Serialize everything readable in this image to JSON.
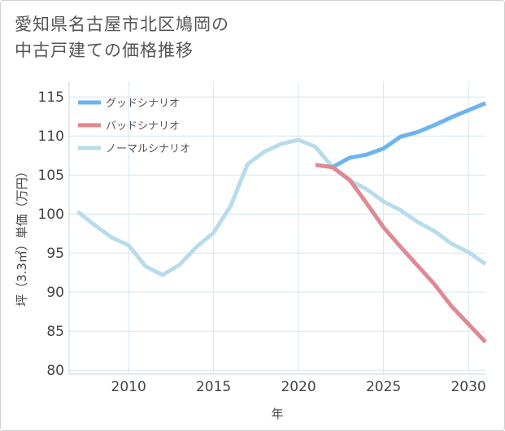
{
  "title": {
    "line1": "愛知県名古屋市北区鳩岡の",
    "line2": "中古戸建ての価格推移"
  },
  "chart_data": {
    "type": "line",
    "title": "愛知県名古屋市北区鳩岡の中古戸建ての価格推移",
    "xlabel": "年",
    "ylabel": "坪（3.3㎡）単価（万円）",
    "xlim": [
      2006.5,
      2031
    ],
    "ylim": [
      79.5,
      117
    ],
    "xticks": [
      2010,
      2015,
      2020,
      2025,
      2030
    ],
    "yticks": [
      80,
      85,
      90,
      95,
      100,
      105,
      110,
      115
    ],
    "grid": true,
    "legend_position": "top-left",
    "series": [
      {
        "name": "グッドシナリオ",
        "color": "#6cb4ee",
        "x": [
          2021,
          2022,
          2023,
          2024,
          2025,
          2026,
          2027,
          2028,
          2029,
          2030,
          2031
        ],
        "values": [
          106.3,
          106.0,
          107.2,
          107.6,
          108.4,
          109.9,
          110.5,
          111.4,
          112.4,
          113.3,
          114.2
        ]
      },
      {
        "name": "バッドシナリオ",
        "color": "#de8a92",
        "x": [
          2021,
          2022,
          2023,
          2024,
          2025,
          2026,
          2027,
          2028,
          2029,
          2030,
          2031
        ],
        "values": [
          106.3,
          106.0,
          104.4,
          101.4,
          98.3,
          95.8,
          93.4,
          91.0,
          88.2,
          85.9,
          83.6
        ]
      },
      {
        "name": "ノーマルシナリオ",
        "color": "#b8dcec",
        "x": [
          2007,
          2008,
          2009,
          2010,
          2011,
          2012,
          2013,
          2014,
          2015,
          2016,
          2017,
          2018,
          2019,
          2020,
          2021,
          2022,
          2023,
          2024,
          2025,
          2026,
          2027,
          2028,
          2029,
          2030,
          2031
        ],
        "values": [
          100.3,
          98.6,
          97.0,
          96.0,
          93.3,
          92.2,
          93.5,
          95.8,
          97.6,
          101.0,
          106.4,
          108.0,
          109.0,
          109.5,
          108.6,
          106.0,
          104.3,
          103.2,
          101.6,
          100.5,
          99.0,
          97.8,
          96.2,
          95.1,
          93.6
        ]
      }
    ]
  }
}
